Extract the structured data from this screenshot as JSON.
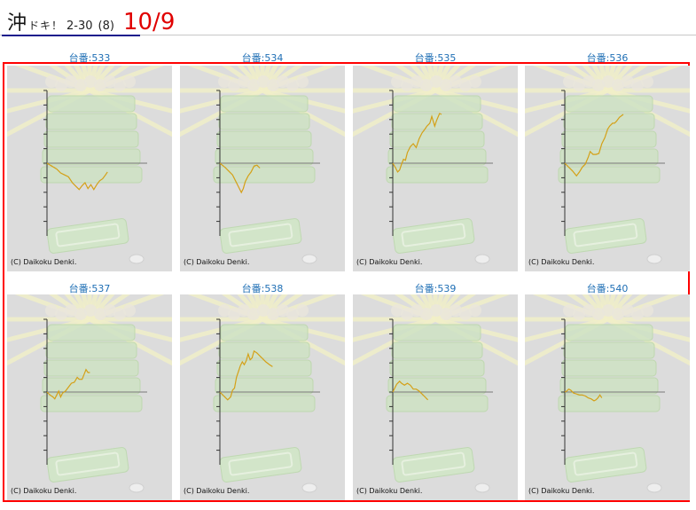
{
  "header": {
    "title_main": "沖",
    "title_kana": "ドキ！",
    "title_num": "2-30",
    "title_count": "(8)",
    "date": "10/9"
  },
  "copyright": "(C) Daikoku Denki.",
  "colors": {
    "accent_red": "#ff0000",
    "date_red": "#e00000",
    "label_blue": "#1f6fb5",
    "line_gold": "#d4a017"
  },
  "machines": [
    {
      "label": "台番:533"
    },
    {
      "label": "台番:534"
    },
    {
      "label": "台番:535"
    },
    {
      "label": "台番:536"
    },
    {
      "label": "台番:537"
    },
    {
      "label": "台番:538"
    },
    {
      "label": "台番:539"
    },
    {
      "label": "台番:540"
    }
  ]
}
